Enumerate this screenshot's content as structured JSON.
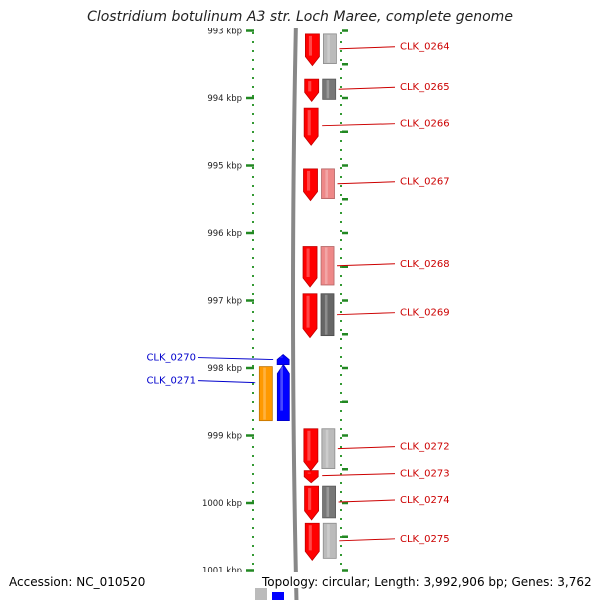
{
  "title": "Clostridium botulinum A3 str. Loch Maree, complete genome",
  "footer": {
    "accession": "Accession: NC_010520",
    "topology": "Topology: circular; Length: 3,992,906 bp; Genes: 3,762"
  },
  "axis": {
    "unit": "kbp",
    "first_visible_label": "993 kbp",
    "ticks": [
      {
        "label": "994 kbp",
        "kbp": 994
      },
      {
        "label": "995 kbp",
        "kbp": 995
      },
      {
        "label": "996 kbp",
        "kbp": 996
      },
      {
        "label": "997 kbp",
        "kbp": 997
      },
      {
        "label": "998 kbp",
        "kbp": 998
      },
      {
        "label": "999 kbp",
        "kbp": 999
      },
      {
        "label": "1000 kbp",
        "kbp": 1000
      },
      {
        "label": "1001 kbp",
        "kbp": 1001
      }
    ]
  },
  "genes": [
    {
      "name": "CLK_0264",
      "start_kbp": 993.05,
      "end_kbp": 993.52,
      "strand": "reverse",
      "color": "#ff0000",
      "companion_color": "#bbbbbb"
    },
    {
      "name": "CLK_0265",
      "start_kbp": 993.72,
      "end_kbp": 994.05,
      "strand": "reverse",
      "color": "#ff0000",
      "companion_color": "#777777"
    },
    {
      "name": "CLK_0266",
      "start_kbp": 994.15,
      "end_kbp": 994.7,
      "strand": "reverse",
      "color": "#ff0000",
      "companion_color": null
    },
    {
      "name": "CLK_0267",
      "start_kbp": 995.05,
      "end_kbp": 995.52,
      "strand": "reverse",
      "color": "#ff0000",
      "companion_color": "#ee8888"
    },
    {
      "name": "CLK_0268",
      "start_kbp": 996.2,
      "end_kbp": 996.8,
      "strand": "reverse",
      "color": "#ff0000",
      "companion_color": "#ee8888"
    },
    {
      "name": "CLK_0269",
      "start_kbp": 996.9,
      "end_kbp": 997.55,
      "strand": "reverse",
      "color": "#ff0000",
      "companion_color": "#666666"
    },
    {
      "name": "CLK_0270",
      "start_kbp": 997.8,
      "end_kbp": 997.95,
      "strand": "forward",
      "color": "#0000ff",
      "companion_color": null
    },
    {
      "name": "CLK_0271",
      "start_kbp": 997.95,
      "end_kbp": 998.78,
      "strand": "forward",
      "color": "#0000ff",
      "companion_color": "#ff9900"
    },
    {
      "name": "CLK_0272",
      "start_kbp": 998.9,
      "end_kbp": 999.52,
      "strand": "reverse",
      "color": "#ff0000",
      "companion_color": "#bbbbbb"
    },
    {
      "name": "CLK_0273",
      "start_kbp": 999.52,
      "end_kbp": 999.7,
      "strand": "reverse",
      "color": "#ff0000",
      "companion_color": null
    },
    {
      "name": "CLK_0274",
      "start_kbp": 999.75,
      "end_kbp": 1000.25,
      "strand": "reverse",
      "color": "#ff0000",
      "companion_color": "#777777"
    },
    {
      "name": "CLK_0275",
      "start_kbp": 1000.3,
      "end_kbp": 1000.85,
      "strand": "reverse",
      "color": "#ff0000",
      "companion_color": "#bbbbbb"
    }
  ],
  "colors": {
    "backbone": "#888888",
    "tick_marks": "#228822",
    "tick_dots": "#339933",
    "forward_label": "#0000cc",
    "reverse_label": "#cc0000"
  }
}
